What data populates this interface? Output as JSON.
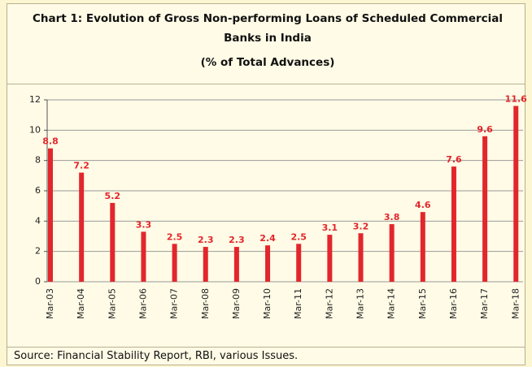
{
  "chart_data": {
    "type": "bar",
    "title": "Chart 1: Evolution of Gross Non-performing Loans of Scheduled Commercial Banks in India",
    "subtitle": "(% of Total Advances)",
    "source": "Source: Financial Stability Report, RBI, various Issues.",
    "categories": [
      "Mar-03",
      "Mar-04",
      "Mar-05",
      "Mar-06",
      "Mar-07",
      "Mar-08",
      "Mar-09",
      "Mar-10",
      "Mar-11",
      "Mar-12",
      "Mar-13",
      "Mar-14",
      "Mar-15",
      "Mar-16",
      "Mar-17",
      "Mar-18"
    ],
    "values": [
      8.8,
      7.2,
      5.2,
      3.3,
      2.5,
      2.3,
      2.3,
      2.4,
      2.5,
      3.1,
      3.2,
      3.8,
      4.6,
      7.6,
      9.6,
      11.6
    ],
    "color": "#e3262c",
    "ylim": [
      0,
      12
    ],
    "yticks": [
      0,
      2,
      4,
      6,
      8,
      10,
      12
    ],
    "grid": true
  }
}
